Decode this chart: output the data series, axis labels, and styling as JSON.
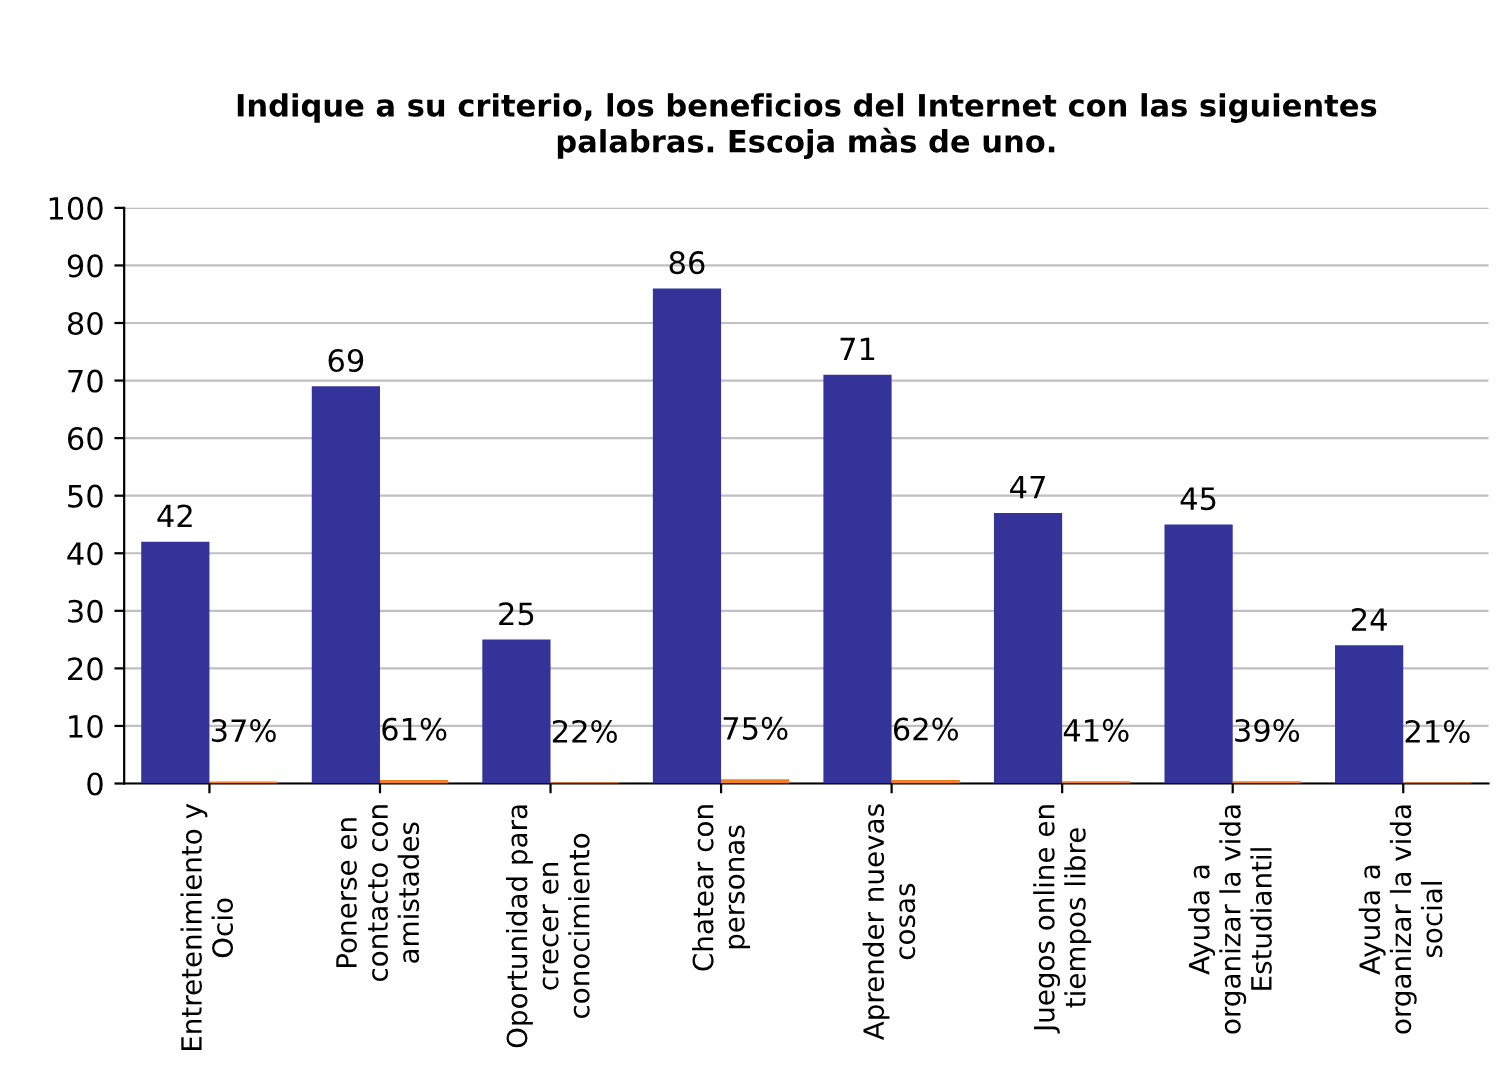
{
  "chart_data": {
    "type": "bar",
    "title": "Indique a su criterio, los beneficios del Internet con las siguientes\npalabras. Escoja màs de uno.",
    "categories": [
      "Entretenimiento y\nOcio",
      "Ponerse en\ncontacto con\namistades",
      "Oportunidad para\ncrecer en\nconocimiento",
      "Chatear con\npersonas",
      "Aprender nuevas\ncosas",
      "Juegos online en\ntiempos libre",
      "Ayuda a\norganizar la vida\nEstudiantil",
      "Ayuda a\norganizar la vida\nsocial"
    ],
    "series": [
      {
        "color": "#333399",
        "values": [
          42,
          69,
          25,
          86,
          71,
          47,
          45,
          24
        ],
        "value_labels": [
          "42",
          "69",
          "25",
          "86",
          "71",
          "47",
          "45",
          "24"
        ]
      },
      {
        "color": "#f07f26",
        "values": [
          0.37,
          0.61,
          0.22,
          0.75,
          0.62,
          0.41,
          0.39,
          0.21
        ],
        "value_labels": [
          "37%",
          "61%",
          "22%",
          "75%",
          "62%",
          "41%",
          "39%",
          "21%"
        ]
      }
    ],
    "ylim": [
      0,
      100
    ],
    "yticks": [
      0,
      10,
      20,
      30,
      40,
      50,
      60,
      70,
      80,
      90,
      100
    ],
    "grid": "y",
    "legend": false
  }
}
